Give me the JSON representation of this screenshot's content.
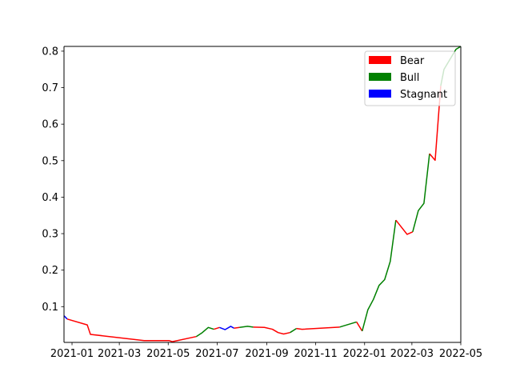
{
  "chart_data": {
    "type": "line",
    "title": "",
    "xlabel": "",
    "ylabel": "",
    "x_ticks": [
      "2021-01",
      "2021-03",
      "2021-05",
      "2021-07",
      "2021-09",
      "2021-11",
      "2022-01",
      "2022-03",
      "2022-05"
    ],
    "y_ticks": [
      "0.1",
      "0.2",
      "0.3",
      "0.4",
      "0.5",
      "0.6",
      "0.7",
      "0.8"
    ],
    "xlim": [
      "2020-12-22",
      "2022-05-01"
    ],
    "ylim": [
      0.002,
      0.813
    ],
    "grid": false,
    "legend_position": "top-right",
    "legend": [
      {
        "label": "Bear",
        "color": "#ff0000"
      },
      {
        "label": "Bull",
        "color": "#008000"
      },
      {
        "label": "Stagnant",
        "color": "#0000ff"
      }
    ],
    "series_colors": {
      "Bear": "#ff0000",
      "Bull": "#008000",
      "Stagnant": "#0000ff"
    },
    "series": [
      {
        "regime": "Stagnant",
        "points": [
          [
            "2020-12-22",
            0.075
          ],
          [
            "2020-12-26",
            0.066
          ]
        ]
      },
      {
        "regime": "Bear",
        "points": [
          [
            "2020-12-26",
            0.066
          ],
          [
            "2021-01-20",
            0.05
          ],
          [
            "2021-01-24",
            0.024
          ],
          [
            "2021-04-01",
            0.007
          ],
          [
            "2021-05-02",
            0.007
          ],
          [
            "2021-05-06",
            0.004
          ],
          [
            "2021-06-05",
            0.018
          ]
        ]
      },
      {
        "regime": "Bull",
        "points": [
          [
            "2021-06-05",
            0.018
          ],
          [
            "2021-06-12",
            0.028
          ],
          [
            "2021-06-20",
            0.043
          ],
          [
            "2021-06-27",
            0.038
          ]
        ]
      },
      {
        "regime": "Bear",
        "points": [
          [
            "2021-06-27",
            0.038
          ],
          [
            "2021-07-04",
            0.043
          ]
        ]
      },
      {
        "regime": "Stagnant",
        "points": [
          [
            "2021-07-04",
            0.043
          ],
          [
            "2021-07-11",
            0.037
          ],
          [
            "2021-07-18",
            0.046
          ],
          [
            "2021-07-22",
            0.041
          ]
        ]
      },
      {
        "regime": "Bear",
        "points": [
          [
            "2021-07-22",
            0.041
          ],
          [
            "2021-07-29",
            0.043
          ]
        ]
      },
      {
        "regime": "Bull",
        "points": [
          [
            "2021-07-29",
            0.043
          ],
          [
            "2021-08-08",
            0.046
          ],
          [
            "2021-08-15",
            0.044
          ]
        ]
      },
      {
        "regime": "Bear",
        "points": [
          [
            "2021-08-15",
            0.044
          ],
          [
            "2021-08-29",
            0.043
          ],
          [
            "2021-09-08",
            0.038
          ],
          [
            "2021-09-15",
            0.029
          ],
          [
            "2021-09-22",
            0.025
          ],
          [
            "2021-09-30",
            0.029
          ]
        ]
      },
      {
        "regime": "Bull",
        "points": [
          [
            "2021-09-30",
            0.029
          ],
          [
            "2021-10-08",
            0.04
          ]
        ]
      },
      {
        "regime": "Bear",
        "points": [
          [
            "2021-10-08",
            0.04
          ],
          [
            "2021-10-15",
            0.038
          ],
          [
            "2021-12-01",
            0.044
          ]
        ]
      },
      {
        "regime": "Bull",
        "points": [
          [
            "2021-12-01",
            0.044
          ],
          [
            "2021-12-22",
            0.058
          ]
        ]
      },
      {
        "regime": "Bear",
        "points": [
          [
            "2021-12-22",
            0.058
          ],
          [
            "2021-12-29",
            0.033
          ]
        ]
      },
      {
        "regime": "Bull",
        "points": [
          [
            "2021-12-29",
            0.033
          ],
          [
            "2022-01-05",
            0.091
          ],
          [
            "2022-01-12",
            0.12
          ],
          [
            "2022-01-19",
            0.158
          ],
          [
            "2022-01-26",
            0.174
          ],
          [
            "2022-02-02",
            0.224
          ],
          [
            "2022-02-09",
            0.337
          ]
        ]
      },
      {
        "regime": "Bear",
        "points": [
          [
            "2022-02-09",
            0.337
          ],
          [
            "2022-02-23",
            0.298
          ],
          [
            "2022-03-02",
            0.305
          ]
        ]
      },
      {
        "regime": "Bull",
        "points": [
          [
            "2022-03-02",
            0.305
          ],
          [
            "2022-03-09",
            0.363
          ],
          [
            "2022-03-16",
            0.383
          ],
          [
            "2022-03-23",
            0.519
          ]
        ]
      },
      {
        "regime": "Bear",
        "points": [
          [
            "2022-03-23",
            0.519
          ],
          [
            "2022-03-30",
            0.501
          ],
          [
            "2022-04-06",
            0.705
          ]
        ]
      },
      {
        "regime": "Bull",
        "points": [
          [
            "2022-04-06",
            0.705
          ],
          [
            "2022-04-10",
            0.75
          ],
          [
            "2022-04-25",
            0.805
          ],
          [
            "2022-05-01",
            0.813
          ]
        ]
      }
    ]
  }
}
